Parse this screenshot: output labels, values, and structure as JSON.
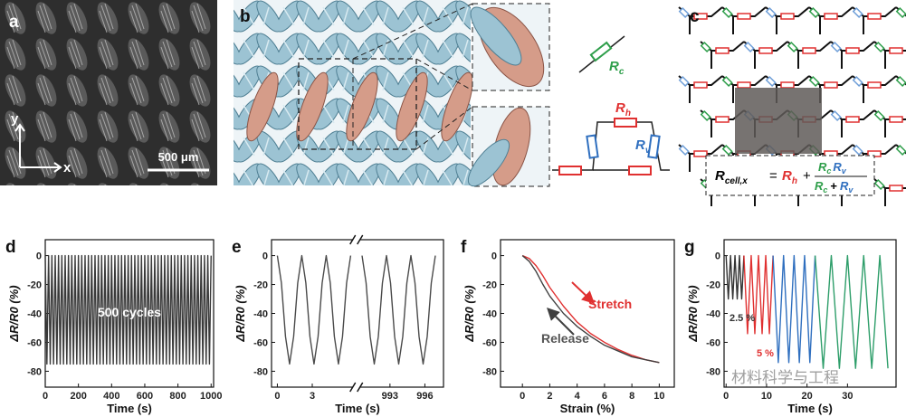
{
  "panel_a": {
    "label": "a",
    "y_axis": "y",
    "x_axis": "x",
    "scale_bar": "500 μm"
  },
  "panel_b": {
    "label": "b",
    "rc": [
      "R",
      "c"
    ],
    "rh": [
      "R",
      "h"
    ],
    "rv": [
      "R",
      "v"
    ]
  },
  "panel_c": {
    "label": "c",
    "formula": {
      "lhs": [
        "R",
        "cell,x"
      ],
      "equals": "=",
      "term": [
        "R",
        "h"
      ],
      "plus": "+",
      "numerator": [
        [
          "R",
          "c"
        ],
        [
          "R",
          "v"
        ]
      ],
      "denominator": [
        [
          "R",
          "c"
        ],
        "+",
        [
          "R",
          "v"
        ]
      ]
    }
  },
  "watermark": "材料科学与工程",
  "chart_data": [
    {
      "type": "line",
      "panel": "d",
      "xlabel": "Time (s)",
      "ylabel": "ΔR/R0 (%)",
      "annotation": "500 cycles",
      "xlim": [
        0,
        1015
      ],
      "xticks": [
        0,
        200,
        400,
        600,
        800,
        1000
      ],
      "ylim": [
        -91,
        11
      ],
      "yticks": [
        0,
        -20,
        -40,
        -60,
        -80
      ],
      "series": [
        {
          "color": "#3a3a3a",
          "x": [
            0,
            10,
            20,
            30,
            40,
            50,
            60,
            70,
            80,
            90,
            100,
            110,
            120,
            130,
            140,
            150,
            160,
            170,
            180,
            190,
            200,
            210,
            220,
            230,
            240,
            250,
            260,
            270,
            280,
            290,
            300,
            310,
            320,
            330,
            340,
            350,
            360,
            370,
            380,
            390,
            400,
            410,
            420,
            430,
            440,
            450,
            460,
            470,
            480,
            490,
            500,
            510,
            520,
            530,
            540,
            550,
            560,
            570,
            580,
            590,
            600,
            610,
            620,
            630,
            640,
            650,
            660,
            670,
            680,
            690,
            700,
            710,
            720,
            730,
            740,
            750,
            760,
            770,
            780,
            790,
            800,
            810,
            820,
            830,
            840,
            850,
            860,
            870,
            880,
            890,
            900,
            910,
            920,
            930,
            940,
            950,
            960,
            970,
            980,
            990,
            1000
          ],
          "values": [
            0,
            -75,
            0,
            -75,
            0,
            -75,
            0,
            -75,
            0,
            -75,
            0,
            -75,
            0,
            -75,
            0,
            -75,
            0,
            -75,
            0,
            -75,
            0,
            -75,
            0,
            -75,
            0,
            -75,
            0,
            -75,
            0,
            -75,
            0,
            -75,
            0,
            -75,
            0,
            -75,
            0,
            -75,
            0,
            -75,
            0,
            -75,
            0,
            -75,
            0,
            -75,
            0,
            -75,
            0,
            -75,
            0,
            -75,
            0,
            -75,
            0,
            -75,
            0,
            -75,
            0,
            -75,
            0,
            -75,
            0,
            -75,
            0,
            -75,
            0,
            -75,
            0,
            -75,
            0,
            -75,
            0,
            -75,
            0,
            -75,
            0,
            -75,
            0,
            -75,
            0,
            -75,
            0,
            -75,
            0,
            -75,
            0,
            -75,
            0,
            -75,
            0,
            -75,
            0,
            -75,
            0,
            -75,
            0,
            -75,
            0,
            -75,
            0
          ]
        }
      ]
    },
    {
      "type": "line",
      "panel": "e",
      "xlabel": "Time (s)",
      "ylabel": "ΔR/R0 (%)",
      "xlim": [
        -0.5,
        997.6
      ],
      "xbreak": [
        6.4,
        990.5
      ],
      "xticks": [
        0,
        3,
        993,
        996
      ],
      "ylim": [
        -91,
        11
      ],
      "yticks": [
        0,
        -20,
        -40,
        -60,
        -80
      ],
      "series": [
        {
          "color": "#4a4a4a",
          "x": [
            0,
            0.35,
            0.7,
            1.05,
            1.4,
            1.75,
            2.1,
            2.45,
            2.8,
            3.15,
            3.5,
            3.85,
            4.2,
            4.55,
            4.9,
            5.25,
            5.6,
            5.95,
            6.3,
            null,
            990.6,
            990.95,
            991.3,
            991.65,
            992,
            992.35,
            992.7,
            993.05,
            993.4,
            993.75,
            994.1,
            994.45,
            994.8,
            995.15,
            995.5,
            995.85,
            996.2,
            996.55,
            996.9
          ],
          "values": [
            0,
            -19,
            -56,
            -75,
            -56,
            -19,
            0,
            -19,
            -56,
            -75,
            -56,
            -19,
            0,
            -19,
            -56,
            -75,
            -56,
            -19,
            0,
            null,
            0,
            -19,
            -56,
            -75,
            -56,
            -19,
            0,
            -19,
            -56,
            -75,
            -56,
            -19,
            0,
            -19,
            -56,
            -75,
            -56,
            -19,
            0
          ]
        }
      ]
    },
    {
      "type": "line",
      "panel": "f",
      "xlabel": "Strain (%)",
      "ylabel": "ΔR/R0 (%)",
      "xlim": [
        -1.6,
        11.1
      ],
      "xticks": [
        0,
        2,
        4,
        6,
        8,
        10
      ],
      "ylim": [
        -91,
        11
      ],
      "yticks": [
        0,
        -20,
        -40,
        -60,
        -80
      ],
      "series": [
        {
          "name": "Stretch",
          "color": "#e03030",
          "x": [
            0,
            0.5,
            1,
            1.5,
            2,
            3,
            4,
            5,
            6,
            7,
            8,
            9,
            10
          ],
          "values": [
            0,
            -2,
            -7,
            -14,
            -22,
            -35,
            -46,
            -54,
            -60,
            -65,
            -69,
            -72,
            -74
          ]
        },
        {
          "name": "Release",
          "color": "#404040",
          "x": [
            0,
            0.5,
            1,
            1.5,
            2,
            3,
            4,
            5,
            6,
            7,
            8,
            9,
            10
          ],
          "values": [
            0,
            -4,
            -11,
            -20,
            -28,
            -40,
            -49,
            -56,
            -62,
            -66,
            -70,
            -72,
            -74
          ]
        }
      ]
    },
    {
      "type": "line",
      "panel": "g",
      "xlabel": "Time (s)",
      "ylabel": "ΔR/R0 (%)",
      "xlim": [
        -0.5,
        42
      ],
      "xticks": [
        0,
        10,
        20,
        30
      ],
      "ylim": [
        -91,
        11
      ],
      "yticks": [
        0,
        -20,
        -40,
        -60,
        -80
      ],
      "series": [
        {
          "name": "2.5 %",
          "color": "#333333",
          "x": [
            0,
            0.275,
            0.55,
            0.825,
            1.1,
            1.375,
            1.65,
            1.925,
            2.2,
            2.475,
            2.75,
            3.025,
            3.3,
            3.575,
            3.85,
            4.125,
            4.4
          ],
          "values": [
            0,
            -15,
            -30,
            -15,
            0,
            -15,
            -30,
            -15,
            0,
            -15,
            -30,
            -15,
            0,
            -15,
            -30,
            -15,
            0
          ]
        },
        {
          "name": "5 %",
          "color": "#e03030",
          "x": [
            4.4,
            4.85,
            5.3,
            5.75,
            6.2,
            6.65,
            7.1,
            7.55,
            8,
            8.45,
            8.9,
            9.35,
            9.8,
            10.25,
            10.7,
            11.15,
            11.6
          ],
          "values": [
            0,
            -27,
            -54,
            -27,
            0,
            -27,
            -54,
            -27,
            0,
            -27,
            -54,
            -27,
            0,
            -27,
            -54,
            -27,
            0
          ]
        },
        {
          "color": "#2f6fbf",
          "x": [
            11.6,
            12.25,
            12.9,
            13.55,
            14.2,
            14.85,
            15.5,
            16.15,
            16.8,
            17.45,
            18.1,
            18.75,
            19.4,
            20.05,
            20.7,
            21.35,
            22
          ],
          "values": [
            0,
            -37,
            -74,
            -37,
            0,
            -37,
            -74,
            -37,
            0,
            -37,
            -74,
            -37,
            0,
            -37,
            -74,
            -37,
            0
          ]
        },
        {
          "color": "#2e9e6a",
          "x": [
            22,
            23,
            24,
            25,
            26,
            27,
            28,
            29,
            30,
            31,
            32,
            33,
            34,
            35,
            36,
            37,
            38,
            39,
            40
          ],
          "values": [
            0,
            -39,
            -78,
            -39,
            0,
            -39,
            -78,
            -39,
            0,
            -39,
            -78,
            -39,
            0,
            -39,
            -78,
            -39,
            0,
            -39,
            -78
          ]
        }
      ]
    }
  ]
}
